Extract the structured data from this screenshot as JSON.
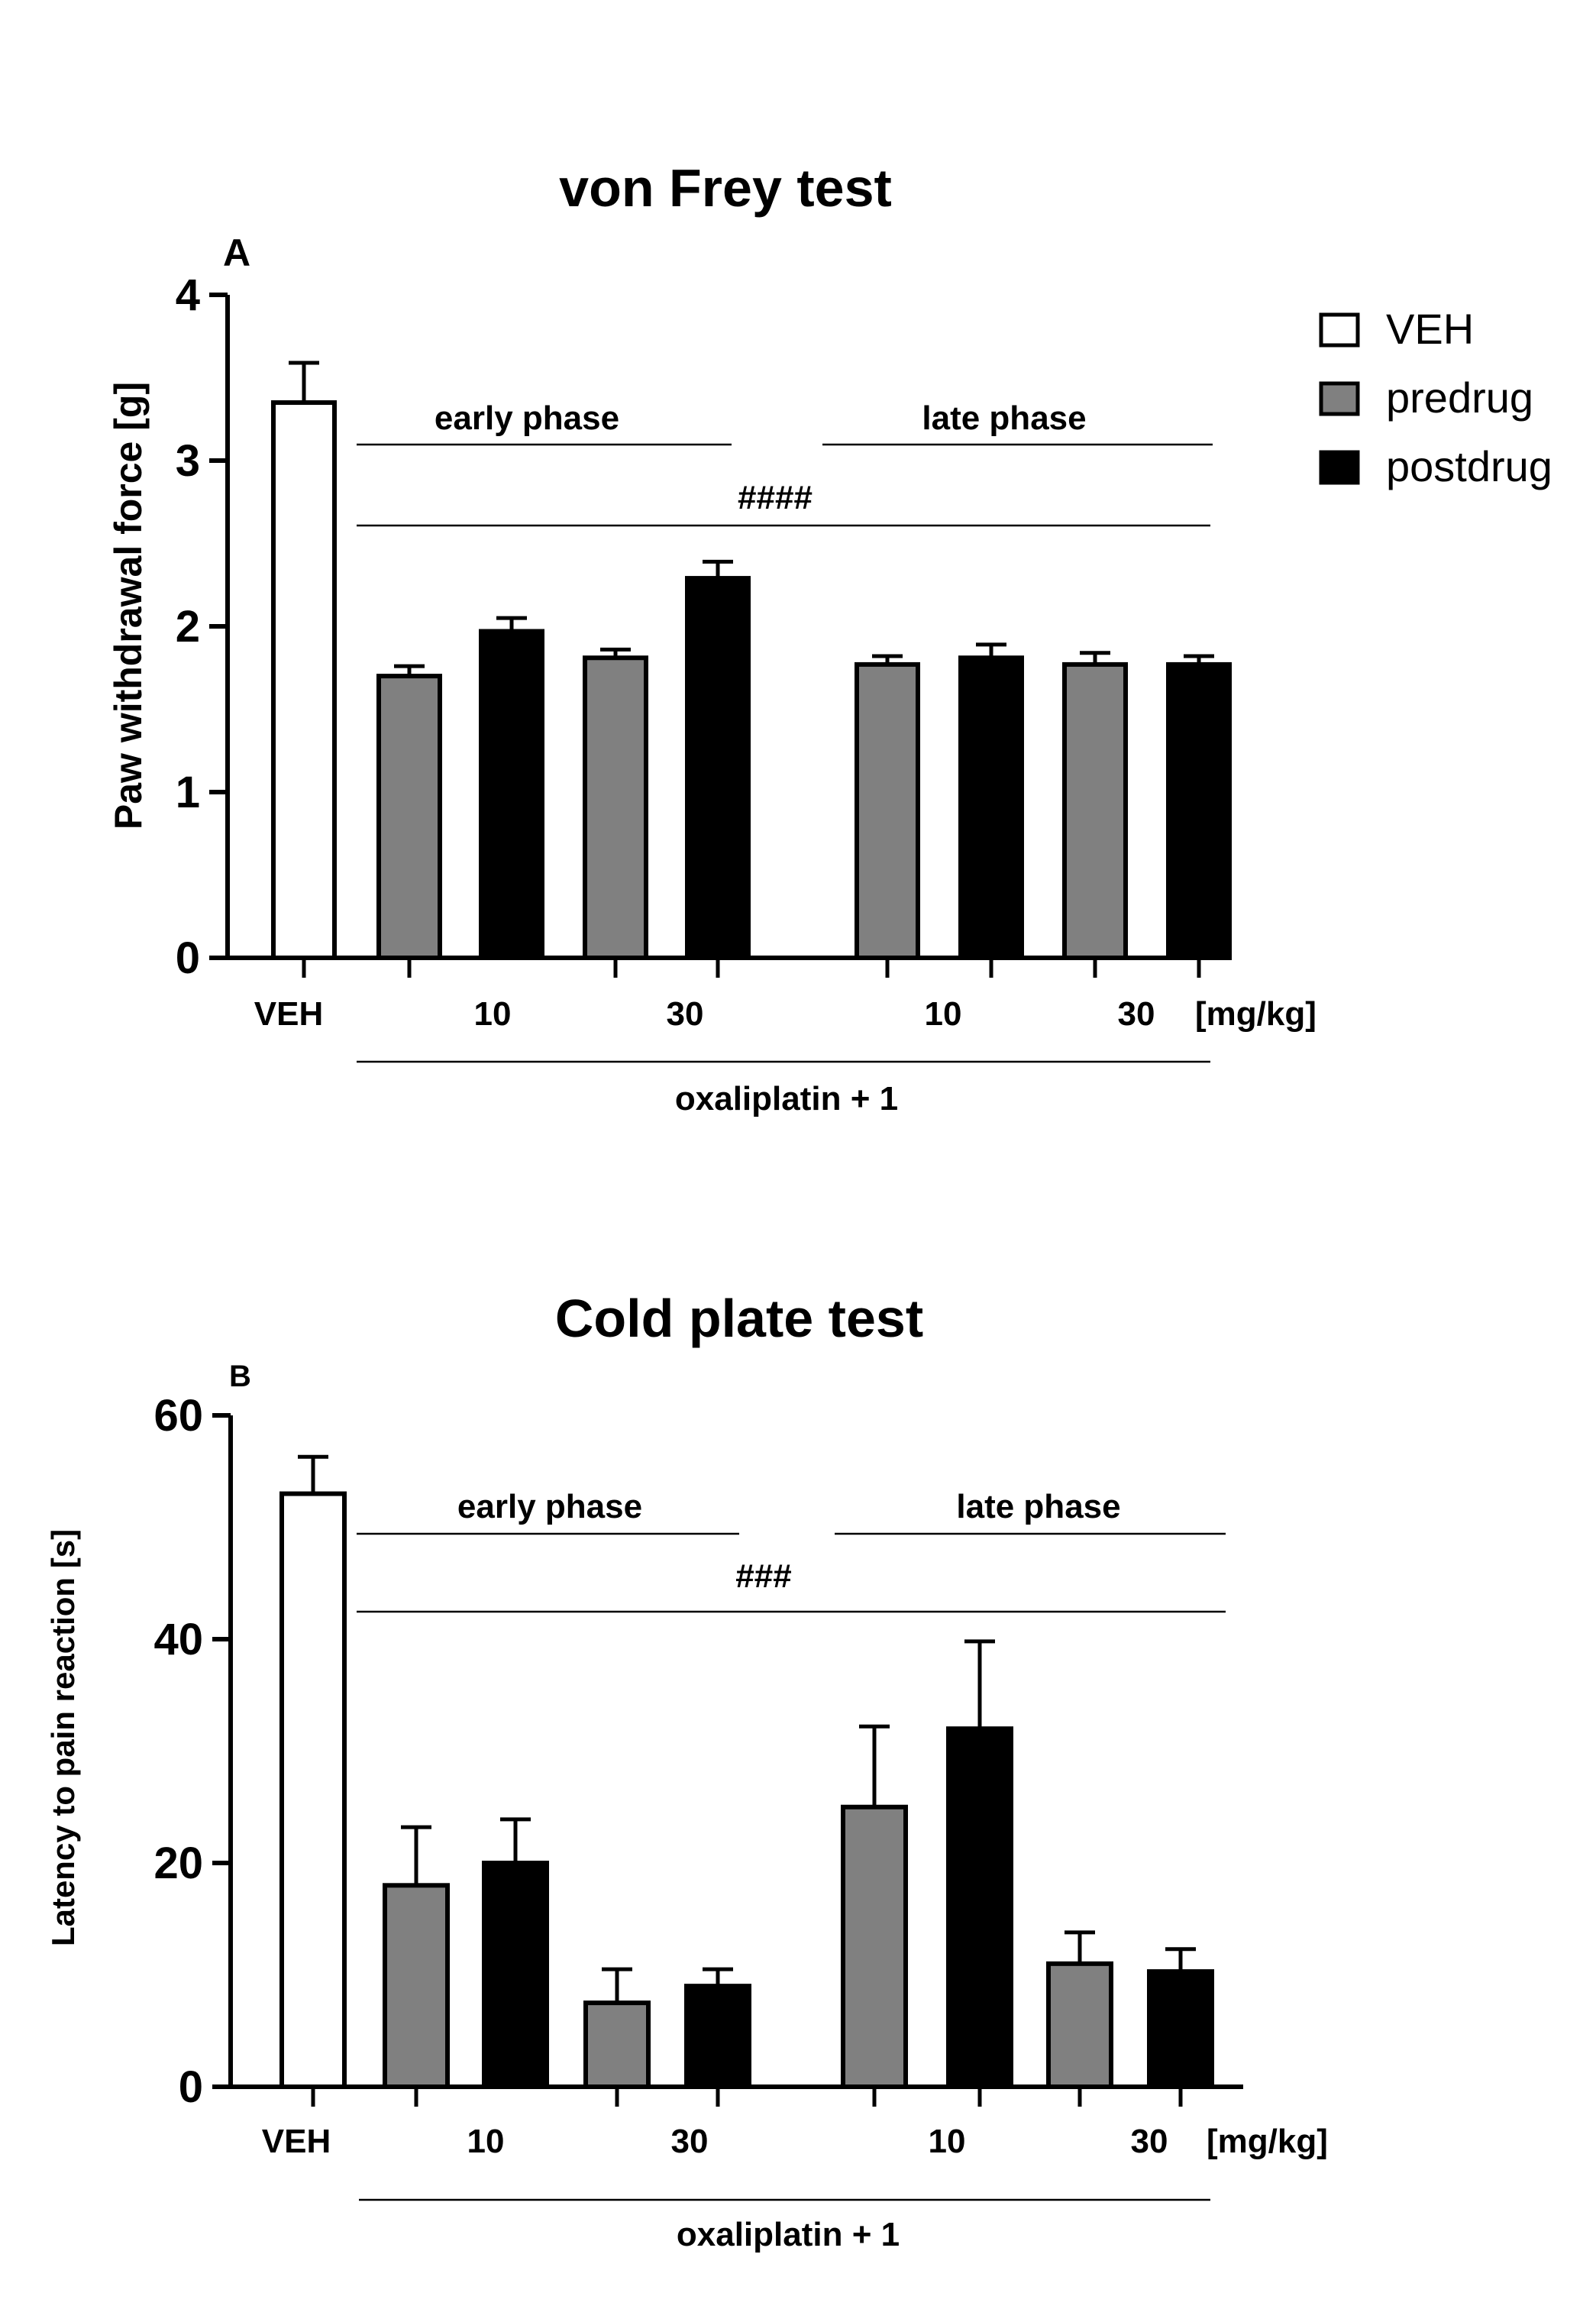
{
  "legend": {
    "items": [
      {
        "label": "VEH",
        "color": "#ffffff"
      },
      {
        "label": "predrug",
        "color": "#808080"
      },
      {
        "label": "postdrug",
        "color": "#000000"
      }
    ]
  },
  "chart_data": [
    {
      "type": "bar",
      "panel": "A",
      "title": "von Frey test",
      "ylabel": "Paw withdrawal force [g]",
      "ylim": [
        0,
        4
      ],
      "yticks": [
        "0",
        "1",
        "2",
        "3",
        "4"
      ],
      "x_tick_labels": [
        "VEH",
        "10",
        "30",
        "10",
        "30"
      ],
      "x_unit": "[mg/kg]",
      "group_label": "oxaliplatin + 1",
      "phase_labels": [
        "early phase",
        "late phase"
      ],
      "significance": "####",
      "bars": [
        {
          "category": "VEH",
          "series": "VEH",
          "value": 3.35,
          "error": 0.24
        },
        {
          "category": "early 10",
          "series": "predrug",
          "value": 1.7,
          "error": 0.06
        },
        {
          "category": "early 10",
          "series": "postdrug",
          "value": 1.97,
          "error": 0.08
        },
        {
          "category": "early 30",
          "series": "predrug",
          "value": 1.81,
          "error": 0.05
        },
        {
          "category": "early 30",
          "series": "postdrug",
          "value": 2.29,
          "error": 0.1
        },
        {
          "category": "late 10",
          "series": "predrug",
          "value": 1.77,
          "error": 0.05
        },
        {
          "category": "late 10",
          "series": "postdrug",
          "value": 1.81,
          "error": 0.08
        },
        {
          "category": "late 30",
          "series": "predrug",
          "value": 1.77,
          "error": 0.07
        },
        {
          "category": "late 30",
          "series": "postdrug",
          "value": 1.77,
          "error": 0.05
        }
      ]
    },
    {
      "type": "bar",
      "panel": "B",
      "title": "Cold plate test",
      "ylabel": "Latency to pain reaction [s]",
      "ylim": [
        0,
        60
      ],
      "yticks": [
        "0",
        "20",
        "40",
        "60"
      ],
      "x_tick_labels": [
        "VEH",
        "10",
        "30",
        "10",
        "30"
      ],
      "x_unit": "[mg/kg]",
      "group_label": "oxaliplatin + 1",
      "phase_labels": [
        "early phase",
        "late phase"
      ],
      "significance": "###",
      "bars": [
        {
          "category": "VEH",
          "series": "VEH",
          "value": 53,
          "error": 3.3
        },
        {
          "category": "early 10",
          "series": "predrug",
          "value": 18,
          "error": 5.2
        },
        {
          "category": "early 10",
          "series": "postdrug",
          "value": 20,
          "error": 3.9
        },
        {
          "category": "early 30",
          "series": "predrug",
          "value": 7.5,
          "error": 3
        },
        {
          "category": "early 30",
          "series": "postdrug",
          "value": 9,
          "error": 1.5
        },
        {
          "category": "late 10",
          "series": "predrug",
          "value": 25,
          "error": 7.2
        },
        {
          "category": "late 10",
          "series": "postdrug",
          "value": 32,
          "error": 7.8
        },
        {
          "category": "late 30",
          "series": "predrug",
          "value": 11,
          "error": 2.8
        },
        {
          "category": "late 30",
          "series": "postdrug",
          "value": 10.3,
          "error": 2
        }
      ]
    }
  ]
}
